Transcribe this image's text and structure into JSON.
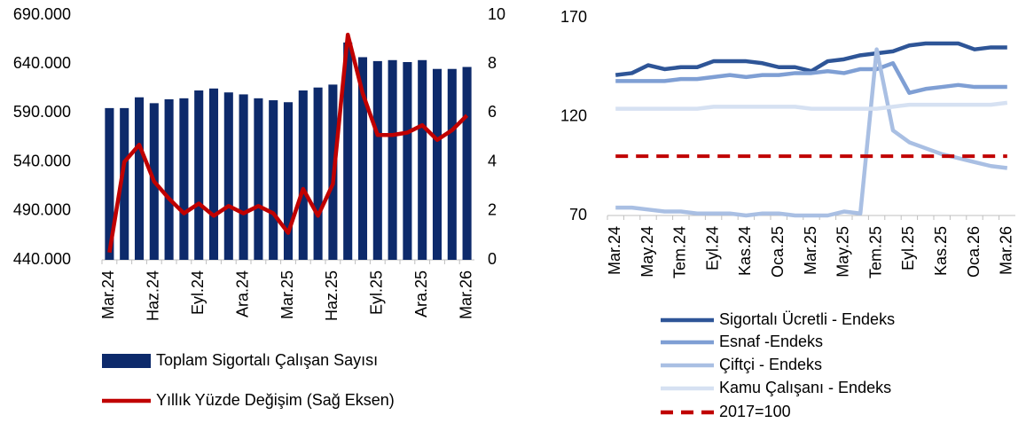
{
  "chart_data": [
    {
      "type": "bar",
      "categories": [
        "Mar.24",
        null,
        null,
        "Haz.24",
        null,
        null,
        "Eyl.24",
        null,
        null,
        "Ara.24",
        null,
        null,
        "Mar.25",
        null,
        null,
        "Haz.25",
        null,
        null,
        "Eyl.25",
        null,
        null,
        "Ara.25",
        null,
        null,
        "Mar.26"
      ],
      "series": [
        {
          "name": "Toplam Sigortalı Çalışan Sayısı",
          "type": "bar",
          "color": "#0d2a6b",
          "values": [
            595000,
            595000,
            606000,
            600000,
            604000,
            605000,
            613000,
            615000,
            611000,
            609000,
            605000,
            603000,
            601000,
            613000,
            616000,
            619000,
            662000,
            647000,
            643000,
            644000,
            642000,
            644000,
            635000,
            635000,
            637000
          ]
        },
        {
          "name": "Yıllık Yüzde Değişim (Sağ Eksen)",
          "type": "line",
          "axis": "y2",
          "color": "#c00000",
          "values": [
            0.3,
            4.0,
            4.7,
            3.2,
            2.5,
            1.9,
            2.3,
            1.8,
            2.2,
            1.9,
            2.2,
            1.9,
            1.1,
            2.9,
            1.8,
            3.1,
            9.2,
            6.8,
            5.1,
            5.1,
            5.2,
            5.5,
            4.9,
            5.3,
            5.9
          ]
        }
      ],
      "ylim": [
        440000,
        690000
      ],
      "yticks": [
        {
          "value": 440000,
          "label": "440.000"
        },
        {
          "value": 490000,
          "label": "490.000"
        },
        {
          "value": 540000,
          "label": "540.000"
        },
        {
          "value": 590000,
          "label": "590.000"
        },
        {
          "value": 640000,
          "label": "640.000"
        },
        {
          "value": 690000,
          "label": "690.000"
        }
      ],
      "y2lim": [
        0,
        10
      ],
      "y2ticks": [
        0,
        2,
        4,
        6,
        8,
        10
      ],
      "legend": "bottom"
    },
    {
      "type": "line",
      "categories": [
        "Mar.24",
        null,
        "May.24",
        null,
        "Tem.24",
        null,
        "Eyl.24",
        null,
        "Kas.24",
        null,
        "Oca.25",
        null,
        "Mar.25",
        null,
        "May.25",
        null,
        "Tem.25",
        null,
        "Eyl.25",
        null,
        "Kas.25",
        null,
        "Oca.26",
        null,
        "Mar.26"
      ],
      "series": [
        {
          "name": "Sigortalı Ücretli - Endeks",
          "color": "#2e5597",
          "values": [
            141,
            142,
            146,
            144,
            145,
            145,
            148,
            148,
            148,
            147,
            145,
            145,
            143,
            148,
            149,
            151,
            152,
            153,
            156,
            157,
            157,
            157,
            154,
            155,
            155
          ]
        },
        {
          "name": "Esnaf -Endeks",
          "color": "#7f9fd4",
          "values": [
            138,
            138,
            138,
            138,
            139,
            139,
            140,
            141,
            140,
            141,
            141,
            142,
            142,
            143,
            142,
            144,
            144,
            147,
            132,
            134,
            135,
            136,
            135,
            135,
            135
          ]
        },
        {
          "name": "Çiftçi - Endeks",
          "color": "#a9bfe3",
          "values": [
            74,
            74,
            73,
            72,
            72,
            71,
            71,
            71,
            70,
            71,
            71,
            70,
            70,
            70,
            72,
            71,
            154,
            113,
            107,
            104,
            101,
            99,
            97,
            95,
            94
          ]
        },
        {
          "name": "Kamu Çalışanı - Endeks",
          "color": "#d6e1f2",
          "values": [
            124,
            124,
            124,
            124,
            124,
            124,
            125,
            125,
            125,
            125,
            125,
            125,
            124,
            124,
            124,
            124,
            124,
            125,
            126,
            126,
            126,
            126,
            126,
            126,
            127
          ]
        },
        {
          "name": "2017=100",
          "color": "#c00000",
          "dashed": true,
          "values": [
            100,
            100,
            100,
            100,
            100,
            100,
            100,
            100,
            100,
            100,
            100,
            100,
            100,
            100,
            100,
            100,
            100,
            100,
            100,
            100,
            100,
            100,
            100,
            100,
            100
          ]
        }
      ],
      "ylim": [
        70,
        170
      ],
      "yticks": [
        70,
        120,
        170
      ],
      "legend": "bottom"
    }
  ]
}
